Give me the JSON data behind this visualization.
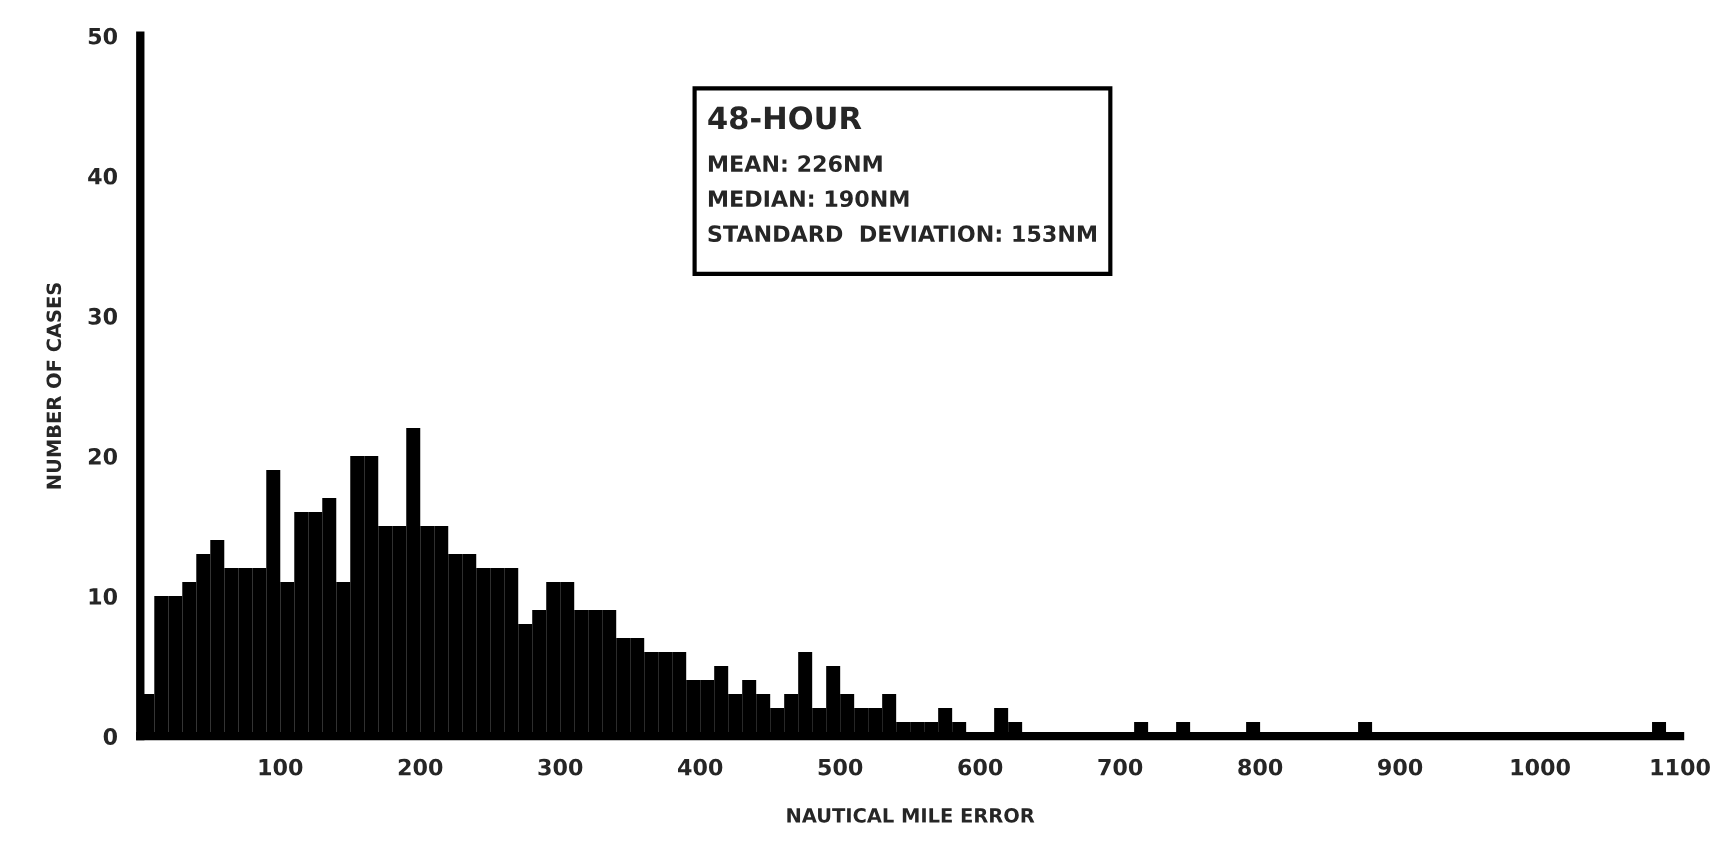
{
  "chart_data": {
    "type": "histogram",
    "xlabel": "NAUTICAL MILE ERROR",
    "ylabel": "NUMBER OF CASES",
    "annotations": [
      "48-HOUR",
      "MEAN: 226NM",
      "MEDIAN: 190NM",
      "STANDARD  DEVIATION: 153NM"
    ],
    "bins": [
      0,
      10,
      20,
      30,
      40,
      50,
      60,
      70,
      80,
      90,
      100,
      110,
      120,
      130,
      140,
      150,
      160,
      170,
      180,
      190,
      200,
      210,
      220,
      230,
      240,
      250,
      260,
      270,
      280,
      290,
      300,
      310,
      320,
      330,
      340,
      350,
      360,
      370,
      380,
      390,
      400,
      410,
      420,
      430,
      440,
      450,
      460,
      470,
      480,
      490,
      500,
      510,
      520,
      530,
      540,
      550,
      560,
      570,
      580,
      590,
      600,
      610,
      620,
      630,
      640,
      650,
      660,
      670,
      680,
      690,
      700,
      710,
      720,
      730,
      740,
      750,
      760,
      770,
      780,
      790,
      800,
      810,
      820,
      830,
      840,
      850,
      860,
      870,
      880,
      890,
      900,
      910,
      920,
      930,
      940,
      950,
      960,
      970,
      980,
      990,
      1000,
      1010,
      1020,
      1030,
      1040,
      1050,
      1060,
      1070,
      1080,
      1090,
      1100
    ],
    "values": [
      3,
      10,
      10,
      11,
      13,
      14,
      12,
      12,
      12,
      19,
      11,
      16,
      16,
      17,
      11,
      20,
      20,
      15,
      15,
      22,
      15,
      15,
      13,
      13,
      12,
      12,
      12,
      8,
      9,
      11,
      11,
      9,
      9,
      9,
      7,
      7,
      6,
      6,
      6,
      4,
      4,
      5,
      3,
      4,
      3,
      2,
      3,
      6,
      2,
      5,
      3,
      2,
      2,
      3,
      1,
      1,
      1,
      2,
      1,
      0,
      0,
      2,
      1,
      0,
      0,
      0,
      0,
      0,
      0,
      0,
      0,
      1,
      0,
      0,
      1,
      0,
      0,
      0,
      0,
      1,
      0,
      0,
      0,
      0,
      0,
      0,
      0,
      1,
      0,
      0,
      0,
      0,
      0,
      0,
      0,
      0,
      0,
      0,
      0,
      0,
      0,
      0,
      0,
      0,
      0,
      0,
      0,
      0,
      1,
      0
    ],
    "color": "#000000",
    "xlim": [
      0,
      1100
    ],
    "ylim": [
      0,
      50
    ],
    "xticks": [
      100,
      200,
      300,
      400,
      500,
      600,
      700,
      800,
      900,
      1000,
      1100
    ],
    "yticks": [
      0,
      10,
      20,
      30,
      40,
      50
    ]
  }
}
